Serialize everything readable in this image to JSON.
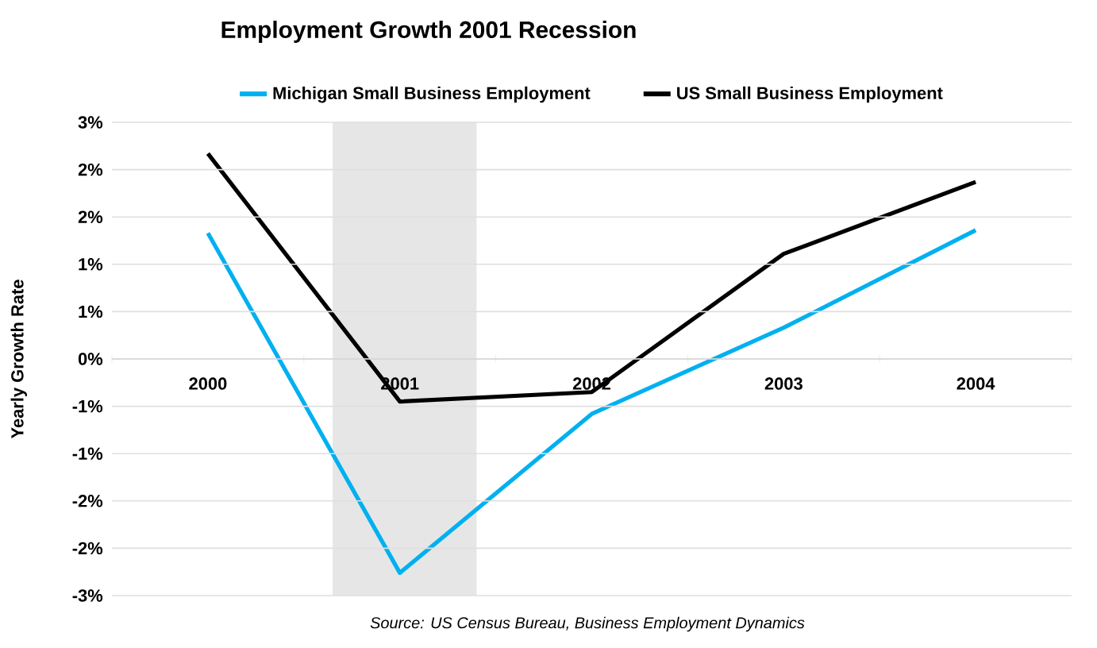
{
  "chart_data": {
    "type": "line",
    "title": "Employment Growth 2001 Recession",
    "ylabel": "Yearly Growth Rate",
    "x": [
      2000,
      2001,
      2002,
      2003,
      2004
    ],
    "series": [
      {
        "name": "Michigan Small Business Employment",
        "color": "#00b0f0",
        "values": [
          1.33,
          -2.26,
          -0.58,
          0.33,
          1.36
        ]
      },
      {
        "name": "US Small Business Employment",
        "color": "#000000",
        "values": [
          2.17,
          -0.45,
          -0.35,
          1.11,
          1.87
        ]
      }
    ],
    "xlim": [
      1999.5,
      2004.5
    ],
    "xticks": [
      2000,
      2001,
      2002,
      2003,
      2004
    ],
    "ylim": [
      -2.5,
      2.5
    ],
    "yticks": [
      {
        "value": -2.5,
        "label": "-3%"
      },
      {
        "value": -2,
        "label": "-2%"
      },
      {
        "value": -1.5,
        "label": "-2%"
      },
      {
        "value": -1,
        "label": "-1%"
      },
      {
        "value": -0.5,
        "label": "-1%"
      },
      {
        "value": 0,
        "label": "0%"
      },
      {
        "value": 0.5,
        "label": "1%"
      },
      {
        "value": 1,
        "label": "1%"
      },
      {
        "value": 1.5,
        "label": "2%"
      },
      {
        "value": 2,
        "label": "2%"
      },
      {
        "value": 2.5,
        "label": "3%"
      }
    ],
    "bands": [
      {
        "axis": "x",
        "from": 2000.65,
        "to": 2001.4,
        "color": "#e6e6e6"
      }
    ],
    "grid": "y",
    "legend": "top",
    "marker": "none",
    "line_style": "solid",
    "annotations": [
      "Source: US Census Bureau, Business Employment Dynamics"
    ]
  }
}
